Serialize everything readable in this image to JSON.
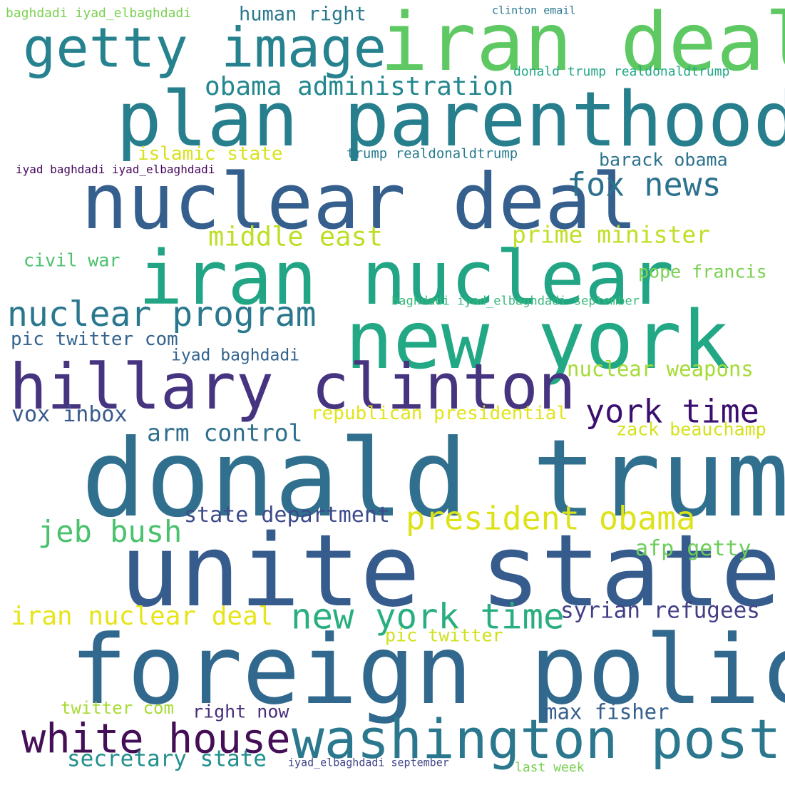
{
  "wordcloud": {
    "words": [
      {
        "text": "donald trump",
        "color": "#30708e"
      },
      {
        "text": "unite state",
        "color": "#365c8d"
      },
      {
        "text": "foreign policy",
        "color": "#31688e"
      },
      {
        "text": "iran deal",
        "color": "#5ec962"
      },
      {
        "text": "plan parenthood",
        "color": "#277f8e"
      },
      {
        "text": "nuclear deal",
        "color": "#355f8d"
      },
      {
        "text": "iran nuclear",
        "color": "#21a585"
      },
      {
        "text": "new york",
        "color": "#22a884"
      },
      {
        "text": "hillary clinton",
        "color": "#463480"
      },
      {
        "text": "getty image",
        "color": "#26828e"
      },
      {
        "text": "washington post",
        "color": "#2a778e"
      },
      {
        "text": "white house",
        "color": "#440f56"
      },
      {
        "text": "new york time",
        "color": "#29af7f"
      },
      {
        "text": "nuclear program",
        "color": "#2a788e"
      },
      {
        "text": "president obama",
        "color": "#dde318"
      },
      {
        "text": "york time",
        "color": "#3b0f70"
      },
      {
        "text": "fox news",
        "color": "#2c718e"
      },
      {
        "text": "obama administration",
        "color": "#24878e"
      },
      {
        "text": "jeb bush",
        "color": "#4ac16d"
      },
      {
        "text": "middle east",
        "color": "#bddf26"
      },
      {
        "text": "prime minister",
        "color": "#c0df25"
      },
      {
        "text": "iran nuclear deal",
        "color": "#e7e419"
      },
      {
        "text": "state department",
        "color": "#3e4a89"
      },
      {
        "text": "syrian refugees",
        "color": "#423f85"
      },
      {
        "text": "nuclear weapons",
        "color": "#a5db36"
      },
      {
        "text": "arm control",
        "color": "#2e6f8e"
      },
      {
        "text": "afp getty",
        "color": "#6ccd5a"
      },
      {
        "text": "secretary state",
        "color": "#218f8d"
      },
      {
        "text": "republican presidential",
        "color": "#e2e418"
      },
      {
        "text": "vox inbox",
        "color": "#375b8d"
      },
      {
        "text": "max fisher",
        "color": "#355f8d"
      },
      {
        "text": "zack beauchamp",
        "color": "#d5e21a"
      },
      {
        "text": "pic twitter com",
        "color": "#33638d"
      },
      {
        "text": "islamic state",
        "color": "#d8e219"
      },
      {
        "text": "human right",
        "color": "#2a788e"
      },
      {
        "text": "barack obama",
        "color": "#2c728e"
      },
      {
        "text": "pope francis",
        "color": "#7ad151"
      },
      {
        "text": "civil war",
        "color": "#4ac16d"
      },
      {
        "text": "iyad baghdadi",
        "color": "#33638d"
      },
      {
        "text": "right now",
        "color": "#472d7b"
      },
      {
        "text": "pic twitter",
        "color": "#d0e11c"
      },
      {
        "text": "twitter com",
        "color": "#a8db34"
      },
      {
        "text": "trump realdonaldtrump",
        "color": "#287c8e"
      },
      {
        "text": "donald trump realdonaldtrump",
        "color": "#22a785"
      },
      {
        "text": "baghdadi iyad_elbaghdadi september",
        "color": "#35b779"
      },
      {
        "text": "baghdadi iyad_elbaghdadi",
        "color": "#7ad151"
      },
      {
        "text": "iyad baghdadi iyad_elbaghdadi",
        "color": "#46085c"
      },
      {
        "text": "iyad_elbaghdadi september",
        "color": "#404588"
      },
      {
        "text": "clinton email",
        "color": "#2a768e"
      },
      {
        "text": "last week",
        "color": "#7ad151"
      }
    ]
  }
}
